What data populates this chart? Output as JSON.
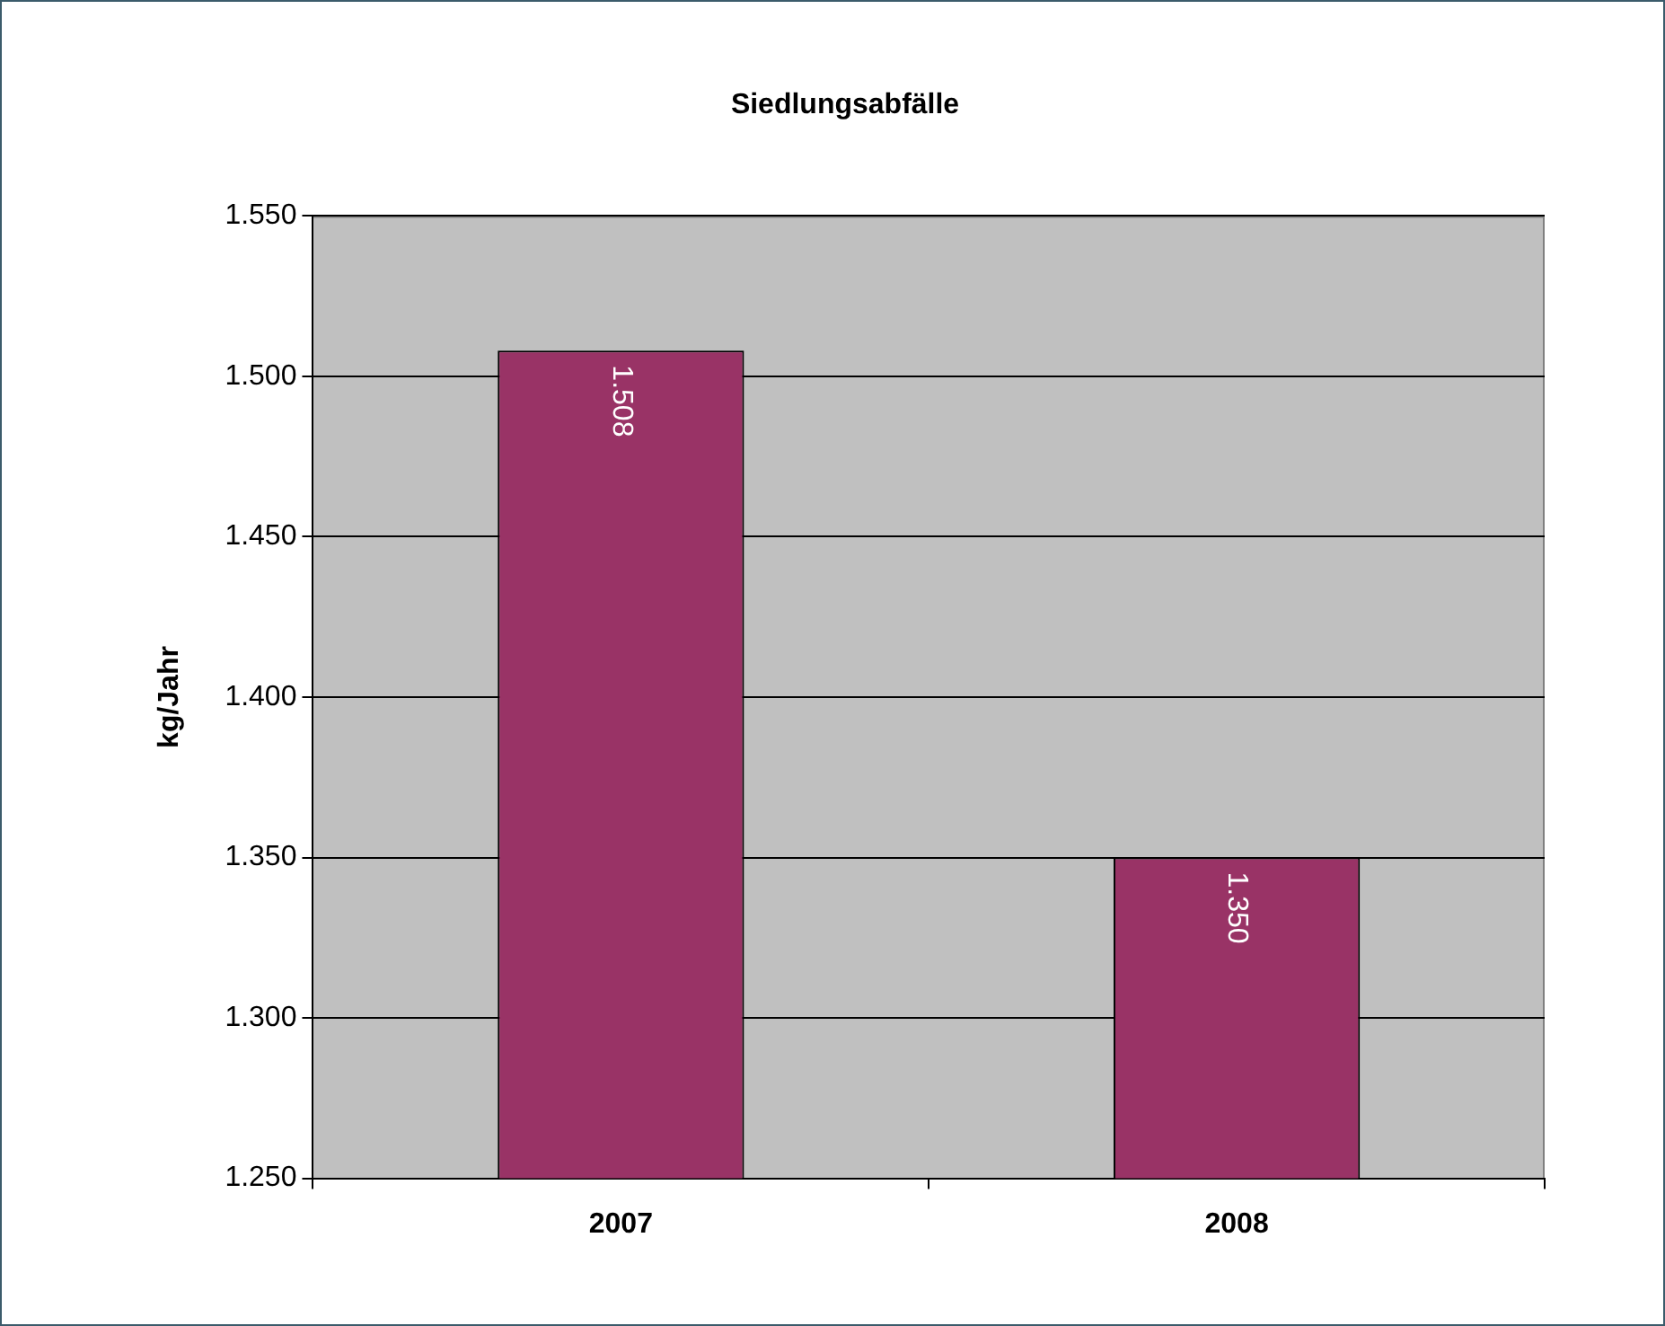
{
  "chart_data": {
    "type": "bar",
    "title": "Siedlungsabfälle",
    "ylabel": "kg/Jahr",
    "categories": [
      "2007",
      "2008"
    ],
    "values": [
      1508,
      1350
    ],
    "value_labels": [
      "1.508",
      "1.350"
    ],
    "color": "#993366",
    "ylim": [
      1250,
      1550
    ],
    "yticks": [
      {
        "value": 1250,
        "label": "1.250"
      },
      {
        "value": 1300,
        "label": "1.300"
      },
      {
        "value": 1350,
        "label": "1.350"
      },
      {
        "value": 1400,
        "label": "1.400"
      },
      {
        "value": 1450,
        "label": "1.450"
      },
      {
        "value": 1500,
        "label": "1.500"
      },
      {
        "value": 1550,
        "label": "1.550"
      }
    ],
    "grid": "y"
  }
}
